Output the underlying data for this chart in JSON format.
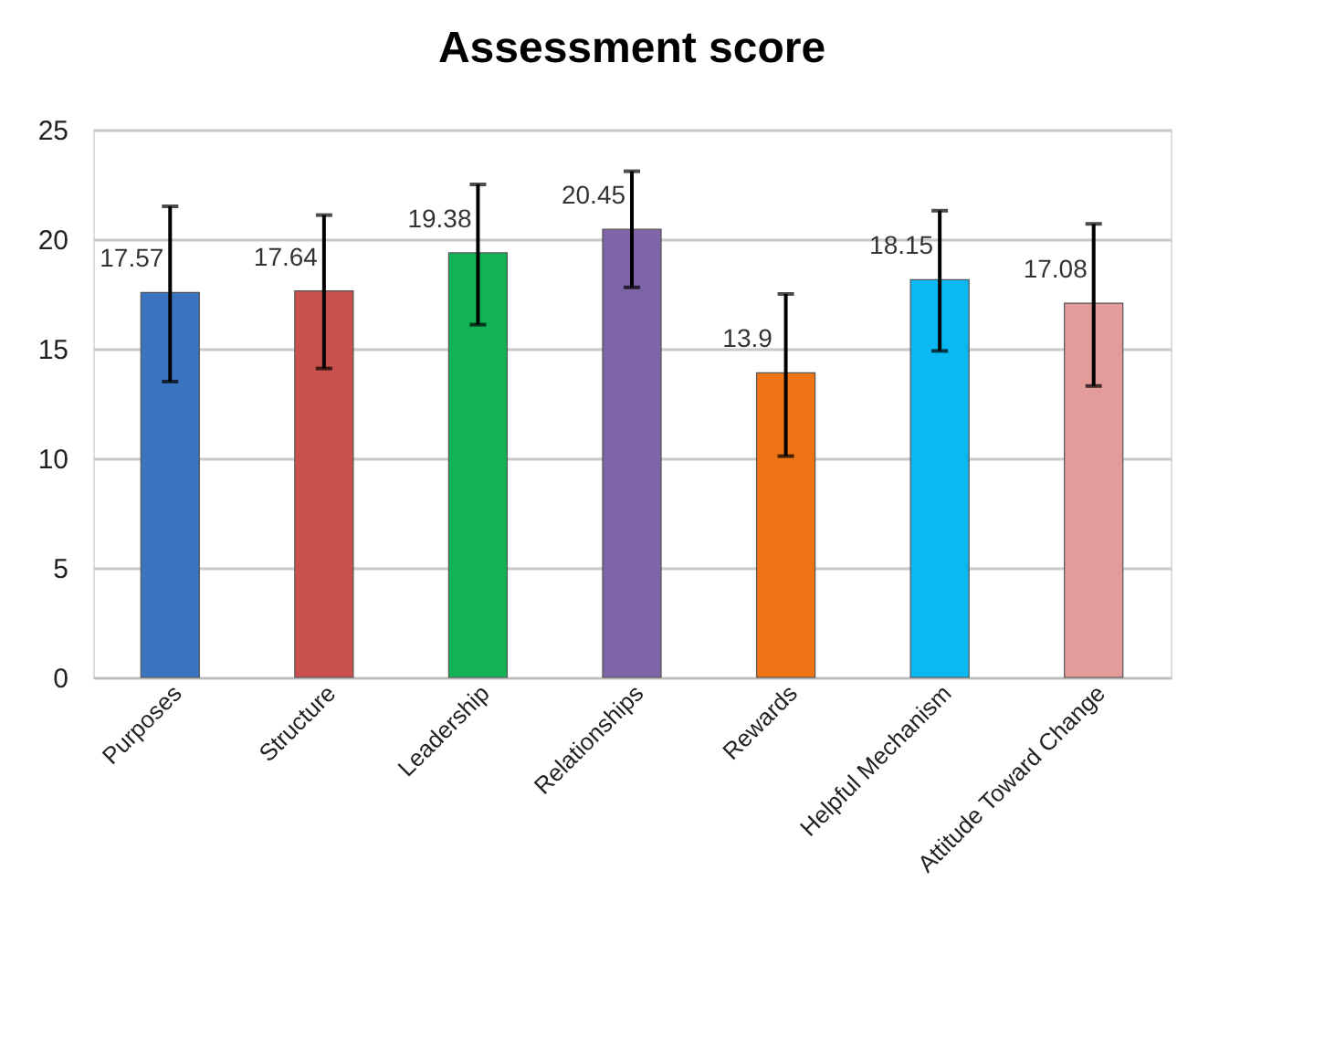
{
  "chart_data": {
    "type": "bar",
    "title": "Assessment score",
    "categories": [
      "Purposes",
      "Structure",
      "Leadership",
      "Relationships",
      "Rewards",
      "Helpful Mechanism",
      "Attitude Toward Change"
    ],
    "values": [
      17.57,
      17.64,
      19.38,
      20.45,
      13.9,
      18.15,
      17.08
    ],
    "colors": [
      "#3a74c0",
      "#c9504d",
      "#12b257",
      "#8064a8",
      "#ee7415",
      "#0ab8f2",
      "#e39c9a"
    ],
    "errors": [
      [
        13.5,
        21.5
      ],
      [
        14.1,
        21.1
      ],
      [
        16.1,
        22.5
      ],
      [
        17.8,
        23.1
      ],
      [
        10.1,
        17.5
      ],
      [
        14.9,
        21.3
      ],
      [
        13.3,
        20.7
      ]
    ],
    "data_labels": true,
    "ylim": [
      0,
      25
    ],
    "yticks": [
      0,
      5,
      10,
      15,
      20,
      25
    ],
    "grid": "y"
  }
}
